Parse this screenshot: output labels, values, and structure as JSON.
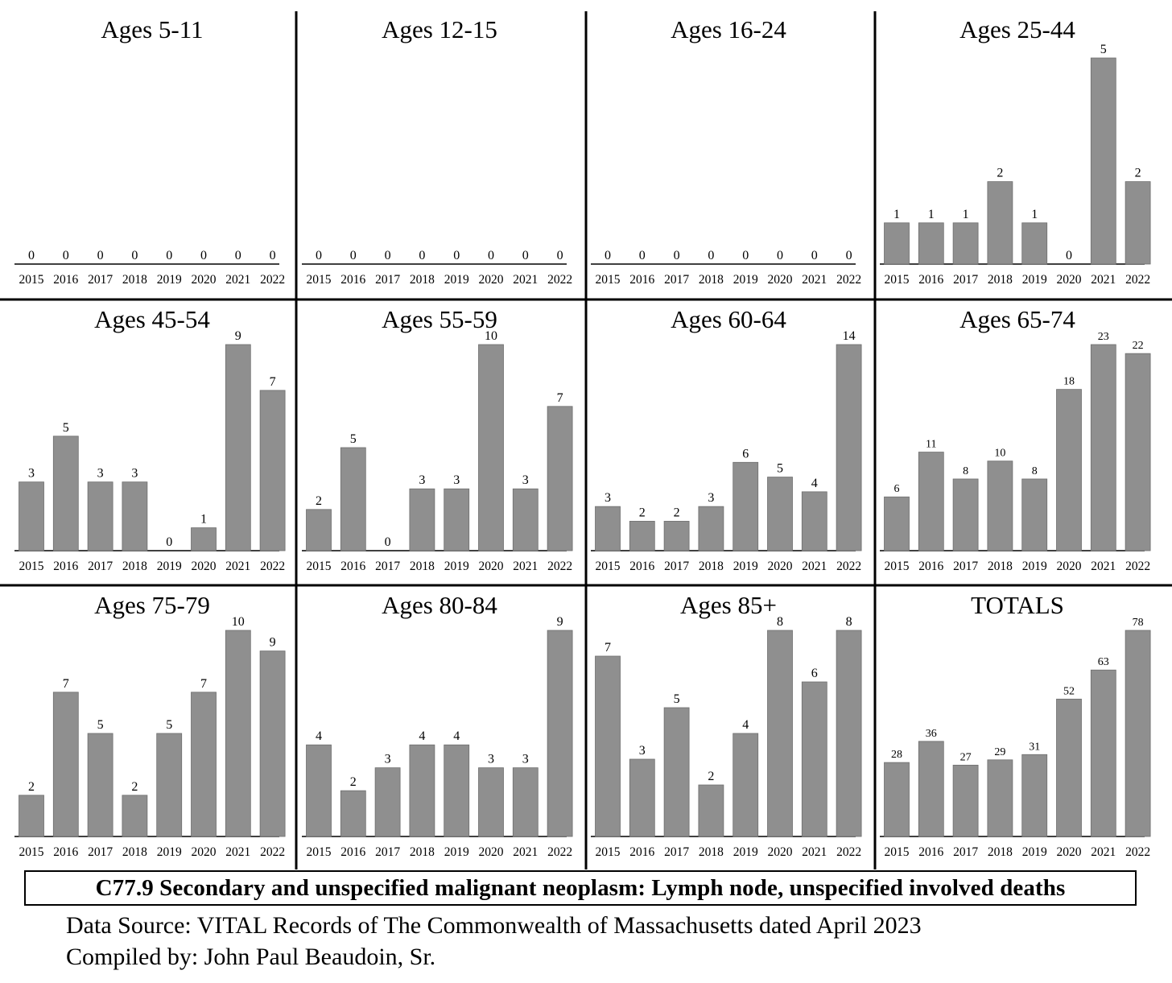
{
  "chart_data": [
    {
      "type": "bar",
      "title": "Ages 5-11",
      "categories": [
        "2015",
        "2016",
        "2017",
        "2018",
        "2019",
        "2020",
        "2021",
        "2022"
      ],
      "values": [
        0,
        0,
        0,
        0,
        0,
        0,
        0,
        0
      ]
    },
    {
      "type": "bar",
      "title": "Ages 12-15",
      "categories": [
        "2015",
        "2016",
        "2017",
        "2018",
        "2019",
        "2020",
        "2021",
        "2022"
      ],
      "values": [
        0,
        0,
        0,
        0,
        0,
        0,
        0,
        0
      ]
    },
    {
      "type": "bar",
      "title": "Ages 16-24",
      "categories": [
        "2015",
        "2016",
        "2017",
        "2018",
        "2019",
        "2020",
        "2021",
        "2022"
      ],
      "values": [
        0,
        0,
        0,
        0,
        0,
        0,
        0,
        0
      ]
    },
    {
      "type": "bar",
      "title": "Ages 25-44",
      "categories": [
        "2015",
        "2016",
        "2017",
        "2018",
        "2019",
        "2020",
        "2021",
        "2022"
      ],
      "values": [
        1,
        1,
        1,
        2,
        1,
        0,
        5,
        2
      ]
    },
    {
      "type": "bar",
      "title": "Ages 45-54",
      "categories": [
        "2015",
        "2016",
        "2017",
        "2018",
        "2019",
        "2020",
        "2021",
        "2022"
      ],
      "values": [
        3,
        5,
        3,
        3,
        0,
        1,
        9,
        7
      ]
    },
    {
      "type": "bar",
      "title": "Ages 55-59",
      "categories": [
        "2015",
        "2016",
        "2017",
        "2018",
        "2019",
        "2020",
        "2021",
        "2022"
      ],
      "values": [
        2,
        5,
        0,
        3,
        3,
        10,
        3,
        7
      ]
    },
    {
      "type": "bar",
      "title": "Ages 60-64",
      "categories": [
        "2015",
        "2016",
        "2017",
        "2018",
        "2019",
        "2020",
        "2021",
        "2022"
      ],
      "values": [
        3,
        2,
        2,
        3,
        6,
        5,
        4,
        14
      ]
    },
    {
      "type": "bar",
      "title": "Ages 65-74",
      "categories": [
        "2015",
        "2016",
        "2017",
        "2018",
        "2019",
        "2020",
        "2021",
        "2022"
      ],
      "values": [
        6,
        11,
        8,
        10,
        8,
        18,
        23,
        22
      ]
    },
    {
      "type": "bar",
      "title": "Ages 75-79",
      "categories": [
        "2015",
        "2016",
        "2017",
        "2018",
        "2019",
        "2020",
        "2021",
        "2022"
      ],
      "values": [
        2,
        7,
        5,
        2,
        5,
        7,
        10,
        9
      ]
    },
    {
      "type": "bar",
      "title": "Ages 80-84",
      "categories": [
        "2015",
        "2016",
        "2017",
        "2018",
        "2019",
        "2020",
        "2021",
        "2022"
      ],
      "values": [
        4,
        2,
        3,
        4,
        4,
        3,
        3,
        9
      ]
    },
    {
      "type": "bar",
      "title": "Ages 85+",
      "categories": [
        "2015",
        "2016",
        "2017",
        "2018",
        "2019",
        "2020",
        "2021",
        "2022"
      ],
      "values": [
        7,
        3,
        5,
        2,
        4,
        8,
        6,
        8
      ]
    },
    {
      "type": "bar",
      "title": "TOTALS",
      "categories": [
        "2015",
        "2016",
        "2017",
        "2018",
        "2019",
        "2020",
        "2021",
        "2022"
      ],
      "values": [
        28,
        36,
        27,
        29,
        31,
        52,
        63,
        78
      ]
    }
  ],
  "caption": "C77.9 Secondary and unspecified malignant neoplasm: Lymph node, unspecified involved deaths",
  "source": "Data Source:  VITAL Records of The Commonwealth of Massachusetts dated April 2023",
  "compiled_by": "Compiled by:  John Paul Beaudoin, Sr.",
  "colors": {
    "bar": "#8f8f8f",
    "bar_outline": "#6e6e6e",
    "axis": "#000000",
    "divider": "#000000"
  }
}
